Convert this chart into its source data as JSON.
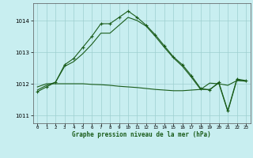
{
  "background_color": "#c8eef0",
  "grid_color": "#9ecfcf",
  "line_color": "#1a5c1a",
  "title": "Graphe pression niveau de la mer (hPa)",
  "xlim": [
    -0.5,
    23.5
  ],
  "ylim": [
    1010.75,
    1014.55
  ],
  "yticks": [
    1011,
    1012,
    1013,
    1014
  ],
  "xticks": [
    0,
    1,
    2,
    3,
    4,
    5,
    6,
    7,
    8,
    9,
    10,
    11,
    12,
    13,
    14,
    15,
    16,
    17,
    18,
    19,
    20,
    21,
    22,
    23
  ],
  "series1_marked": {
    "x": [
      0,
      1,
      2,
      3,
      4,
      5,
      6,
      7,
      8,
      9,
      10,
      11,
      12,
      13,
      14,
      15,
      16,
      17,
      18,
      19,
      20,
      21,
      22,
      23
    ],
    "y": [
      1011.75,
      1011.9,
      1012.05,
      1012.6,
      1012.8,
      1013.15,
      1013.5,
      1013.9,
      1013.9,
      1014.1,
      1014.3,
      1014.1,
      1013.85,
      1013.55,
      1013.2,
      1012.85,
      1012.6,
      1012.25,
      1011.85,
      1011.8,
      1012.05,
      1011.15,
      1012.15,
      1012.1
    ],
    "marker": "+",
    "linestyle": "-"
  },
  "series2_flat": {
    "x": [
      0,
      1,
      2,
      3,
      4,
      5,
      6,
      7,
      8,
      9,
      10,
      11,
      12,
      13,
      14,
      15,
      16,
      17,
      18,
      19,
      20,
      21,
      22,
      23
    ],
    "y": [
      1011.9,
      1012.0,
      1012.0,
      1012.0,
      1012.0,
      1012.0,
      1011.98,
      1011.97,
      1011.95,
      1011.92,
      1011.9,
      1011.88,
      1011.85,
      1011.82,
      1011.8,
      1011.78,
      1011.78,
      1011.8,
      1011.82,
      1012.02,
      1012.0,
      1011.95,
      1012.1,
      1012.08
    ],
    "linestyle": "-"
  },
  "series3_mid": {
    "x": [
      0,
      1,
      2,
      3,
      4,
      5,
      6,
      7,
      8,
      9,
      10,
      11,
      12,
      13,
      14,
      15,
      16,
      17,
      18,
      19,
      20,
      21,
      22,
      23
    ],
    "y": [
      1011.8,
      1011.95,
      1012.05,
      1012.55,
      1012.7,
      1012.95,
      1013.25,
      1013.6,
      1013.6,
      1013.85,
      1014.1,
      1014.0,
      1013.82,
      1013.5,
      1013.15,
      1012.82,
      1012.55,
      1012.2,
      1011.82,
      1011.82,
      1012.02,
      1011.12,
      1012.12,
      1012.08
    ],
    "linestyle": "-"
  }
}
